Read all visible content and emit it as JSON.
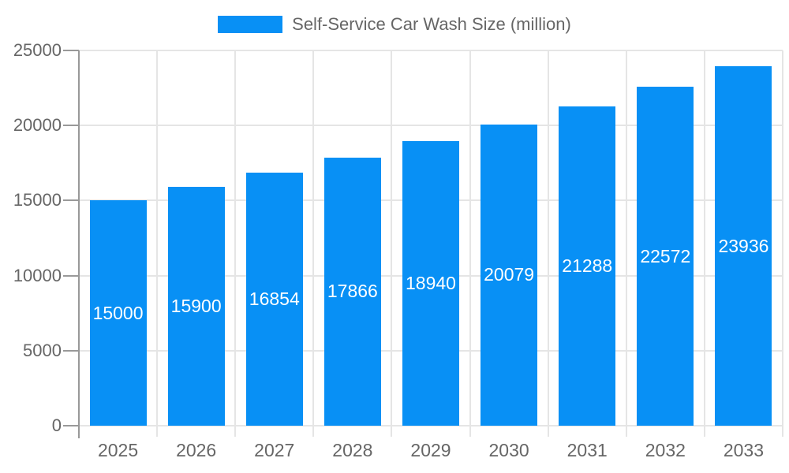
{
  "chart_data": {
    "type": "bar",
    "title": "Self-Service Car Wash Size (million)",
    "legend_position": "top",
    "categories": [
      "2025",
      "2026",
      "2027",
      "2028",
      "2029",
      "2030",
      "2031",
      "2032",
      "2033"
    ],
    "series": [
      {
        "name": "Self-Service Car Wash Size (million)",
        "values": [
          15000,
          15900,
          16854,
          17866,
          18940,
          20079,
          21288,
          22572,
          23936
        ]
      }
    ],
    "xlabel": "",
    "ylabel": "",
    "ylim": [
      0,
      25000
    ],
    "yticks": [
      0,
      5000,
      10000,
      15000,
      20000,
      25000
    ],
    "grid": true,
    "bar_labels_inside": true,
    "colors": {
      "bar": "#0890f5",
      "grid": "#e5e5e5",
      "axis": "#999999",
      "tick_text": "#666666",
      "bar_label_text": "#ffffff"
    }
  }
}
